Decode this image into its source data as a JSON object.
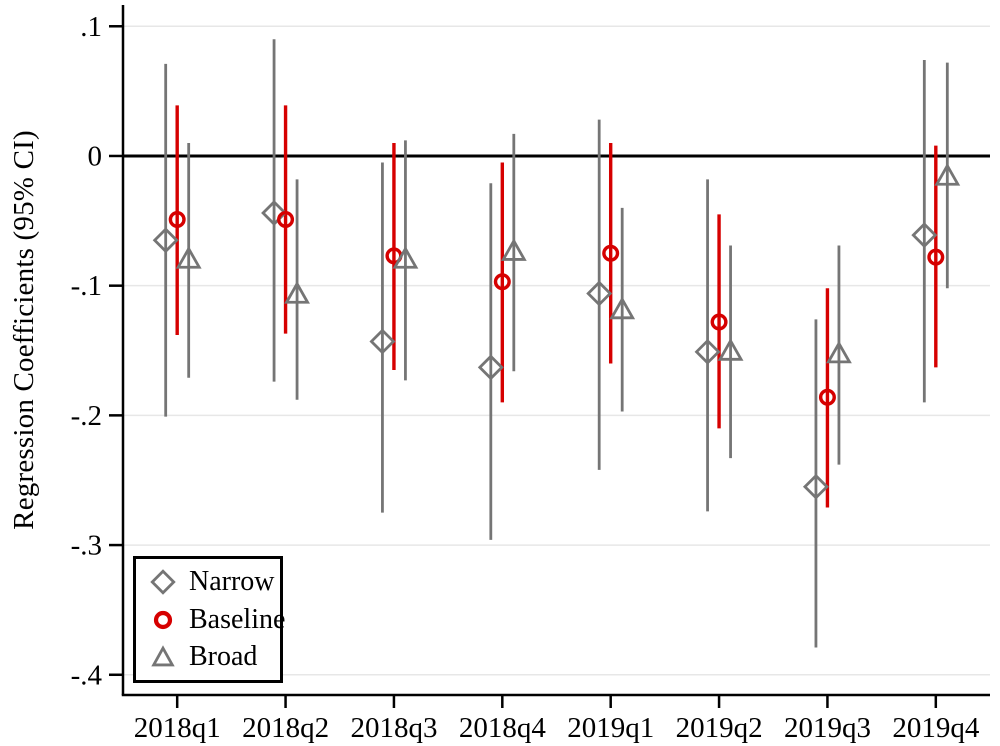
{
  "chart_data": {
    "type": "scatter",
    "subtype": "coefficient-plot-with-ci",
    "title": "",
    "xlabel": "",
    "ylabel": "Regression Coefficients (95% CI)",
    "categories": [
      "2018q1",
      "2018q2",
      "2018q3",
      "2018q4",
      "2019q1",
      "2019q2",
      "2019q3",
      "2019q4"
    ],
    "ylim": [
      -0.4156,
      0.1164
    ],
    "yticks": [
      0.1,
      0,
      -0.1,
      -0.2,
      -0.3,
      -0.4
    ],
    "ytick_labels": [
      ".1",
      "0",
      "-.1",
      "-.2",
      "-.3",
      "-.4"
    ],
    "ref_line_y": 0,
    "grid": true,
    "legend_position": "bottom-left",
    "colors": {
      "gray_series": "#757575",
      "red_series": "#d60000",
      "gridline": "#e7e7e7",
      "axis": "#000000",
      "ref_line": "#000000",
      "background": "#ffffff"
    },
    "series": [
      {
        "name": "Narrow",
        "marker": "diamond",
        "color": "#757575",
        "coef": [
          -0.065,
          -0.044,
          -0.143,
          -0.163,
          -0.106,
          -0.151,
          -0.255,
          -0.061
        ],
        "ci_high": [
          0.071,
          0.09,
          -0.005,
          -0.021,
          0.028,
          -0.018,
          -0.126,
          0.074
        ],
        "ci_low": [
          -0.201,
          -0.174,
          -0.275,
          -0.296,
          -0.242,
          -0.274,
          -0.379,
          -0.19
        ]
      },
      {
        "name": "Baseline",
        "marker": "circle",
        "color": "#d60000",
        "coef": [
          -0.049,
          -0.049,
          -0.077,
          -0.097,
          -0.075,
          -0.128,
          -0.186,
          -0.078
        ],
        "ci_high": [
          0.039,
          0.039,
          0.01,
          -0.005,
          0.01,
          -0.045,
          -0.102,
          0.008
        ],
        "ci_low": [
          -0.138,
          -0.137,
          -0.165,
          -0.19,
          -0.16,
          -0.21,
          -0.271,
          -0.163
        ]
      },
      {
        "name": "Broad",
        "marker": "triangle",
        "color": "#757575",
        "coef": [
          -0.08,
          -0.107,
          -0.08,
          -0.074,
          -0.119,
          -0.151,
          -0.153,
          -0.016
        ],
        "ci_high": [
          0.01,
          -0.018,
          0.012,
          0.017,
          -0.04,
          -0.069,
          -0.069,
          0.072
        ],
        "ci_low": [
          -0.171,
          -0.188,
          -0.173,
          -0.166,
          -0.197,
          -0.233,
          -0.238,
          -0.102
        ]
      }
    ]
  }
}
